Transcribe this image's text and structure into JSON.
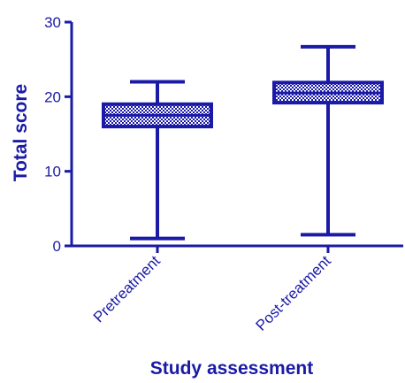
{
  "colors": {
    "main": "#1a1aa6",
    "box_fill": "#ffffff"
  },
  "chart_data": {
    "type": "box",
    "title": "",
    "xlabel": "Study assessment",
    "ylabel": "Total score",
    "ylim": [
      0,
      30
    ],
    "yticks": [
      0,
      10,
      20,
      30
    ],
    "grid": false,
    "legend": "none",
    "categories": [
      "Pretreatment",
      "Post-treatment"
    ],
    "boxes": [
      {
        "category": "Pretreatment",
        "min": 1,
        "q1": 16,
        "median": 17.5,
        "q3": 19,
        "max": 22
      },
      {
        "category": "Post-treatment",
        "min": 1.5,
        "q1": 19.2,
        "median": 20.5,
        "q3": 21.9,
        "max": 26.7
      }
    ]
  }
}
